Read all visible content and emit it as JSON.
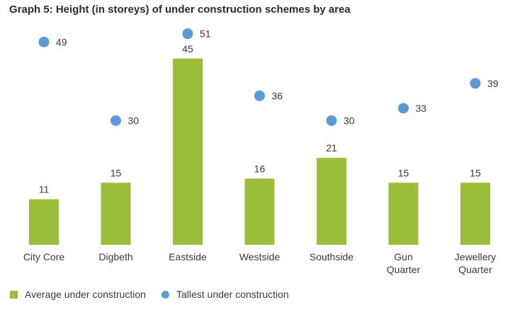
{
  "chart_data": {
    "type": "bar",
    "title": "Graph 5: Height (in storeys) of under construction schemes by area",
    "xlabel": "",
    "ylabel": "",
    "ylim": [
      0,
      55
    ],
    "grid": false,
    "legend_position": "bottom-left",
    "categories": [
      [
        "City Core"
      ],
      [
        "Digbeth"
      ],
      [
        "Eastside"
      ],
      [
        "Westside"
      ],
      [
        "Southside"
      ],
      [
        "Gun",
        "Quarter"
      ],
      [
        "Jewellery",
        "Quarter"
      ]
    ],
    "series": [
      {
        "name": "Average under construction",
        "kind": "bar",
        "color": "#9bbd3a",
        "values": [
          11,
          15,
          45,
          16,
          21,
          15,
          15
        ]
      },
      {
        "name": "Tallest under construction",
        "kind": "scatter",
        "color": "#5b9bd5",
        "values": [
          49,
          30,
          51,
          36,
          30,
          33,
          39
        ]
      }
    ]
  }
}
